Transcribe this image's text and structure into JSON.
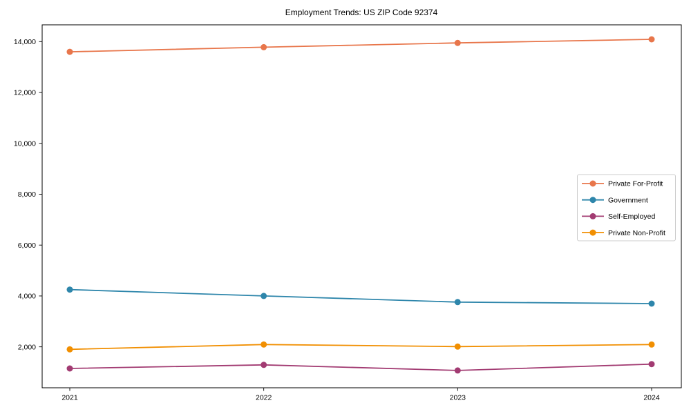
{
  "chart_data": {
    "type": "line",
    "title": "Employment Trends: US ZIP Code 92374",
    "categories": [
      "2021",
      "2022",
      "2023",
      "2024"
    ],
    "series": [
      {
        "name": "Private For-Profit",
        "color": "#E8764B",
        "values": [
          13600,
          13780,
          13950,
          14090
        ]
      },
      {
        "name": "Government",
        "color": "#2E86AB",
        "values": [
          4250,
          4000,
          3760,
          3700
        ]
      },
      {
        "name": "Self-Employed",
        "color": "#A23B72",
        "values": [
          1150,
          1290,
          1070,
          1320
        ]
      },
      {
        "name": "Private Non-Profit",
        "color": "#F18F01",
        "values": [
          1900,
          2090,
          2010,
          2090
        ]
      }
    ],
    "y_ticks": [
      2000,
      4000,
      6000,
      8000,
      10000,
      12000,
      14000
    ],
    "y_tick_labels": [
      "2,000",
      "4,000",
      "6,000",
      "8,000",
      "10,000",
      "12,000",
      "14,000"
    ],
    "ylim": [
      390,
      14660
    ],
    "xlabel": "",
    "ylabel": "",
    "grid": false,
    "legend_position": "center right",
    "marker": "circle",
    "axis_color": "#000000",
    "legend_border_color": "#cccccc",
    "background_color": "#ffffff"
  }
}
